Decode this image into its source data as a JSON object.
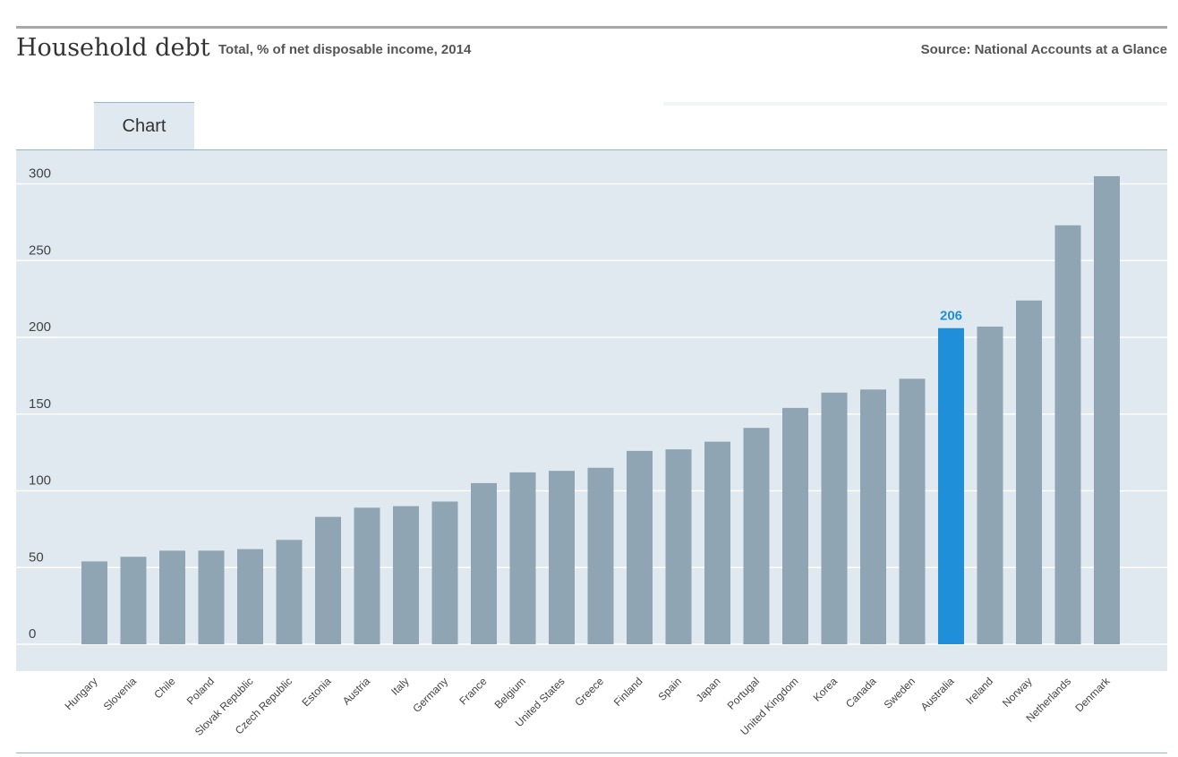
{
  "header": {
    "title": "Household debt",
    "subtitle": "Total, % of net disposable income, 2014",
    "source": "Source: National Accounts at a Glance"
  },
  "tabs": [
    {
      "label": "Chart"
    }
  ],
  "colors": {
    "bar": "#8fa5b3",
    "highlight": "#1e8fd8",
    "plot_bg": "#dfe9ef",
    "grid": "#ffffff"
  },
  "chart_data": {
    "type": "bar",
    "title": "Household debt",
    "subtitle": "Total, % of net disposable income, 2014",
    "categories": [
      "Hungary",
      "Slovenia",
      "Chile",
      "Poland",
      "Slovak Republic",
      "Czech Republic",
      "Estonia",
      "Austria",
      "Italy",
      "Germany",
      "France",
      "Belgium",
      "United States",
      "Greece",
      "Finland",
      "Spain",
      "Japan",
      "Portugal",
      "United Kingdom",
      "Korea",
      "Canada",
      "Sweden",
      "Australia",
      "Ireland",
      "Norway",
      "Netherlands",
      "Denmark"
    ],
    "values": [
      54,
      57,
      61,
      61,
      62,
      68,
      83,
      89,
      90,
      93,
      105,
      112,
      113,
      115,
      126,
      127,
      132,
      141,
      154,
      164,
      166,
      173,
      206,
      207,
      224,
      273,
      305
    ],
    "highlight": {
      "category": "Australia",
      "label": "206"
    },
    "yticks": [
      0,
      50,
      100,
      150,
      200,
      250,
      300
    ],
    "ylim": [
      0,
      310
    ],
    "grid": true,
    "legend": "none"
  }
}
